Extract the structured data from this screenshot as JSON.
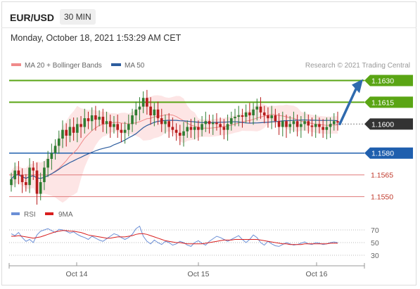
{
  "header": {
    "symbol": "EUR/USD",
    "timeframe": "30 MIN"
  },
  "datetime": "Monday, October 18, 2021 1:53:29 AM CET",
  "attribution": "Research © 2021 Trading Central",
  "colors": {
    "support": "#1f5fae",
    "resistance": "#5aa514",
    "level_line": "#e07a7a",
    "level_text": "#c0392b",
    "ma20": "#f08a8a",
    "bollinger_fill": "#fde0e0",
    "ma50": "#2d5d9e",
    "rsi": "#6b8fd6",
    "rsi_9ma": "#d81e1e",
    "current": "#333333",
    "arrow": "#2f6aae",
    "candle_up": "#2e7d32",
    "candle_down": "#b71c1c"
  },
  "chart_data": [
    {
      "type": "candlestick",
      "title": "EUR/USD",
      "legend": [
        {
          "name": "MA 20 + Bollinger Bands",
          "color": "#f08a8a"
        },
        {
          "name": "MA 50",
          "color": "#2d5d9e"
        }
      ],
      "ylim": [
        1.1545,
        1.1637
      ],
      "x_ticks": [
        "Oct 14",
        "Oct 15",
        "Oct 16"
      ],
      "levels": [
        {
          "label": "1.1630",
          "value": 1.163,
          "kind": "resistance"
        },
        {
          "label": "1.1615",
          "value": 1.1615,
          "kind": "resistance"
        },
        {
          "label": "1.1600",
          "value": 1.16,
          "kind": "current"
        },
        {
          "label": "1.1580",
          "value": 1.158,
          "kind": "support"
        },
        {
          "label": "1.1565",
          "value": 1.1565,
          "kind": "minor"
        },
        {
          "label": "1.1550",
          "value": 1.155,
          "kind": "minor"
        }
      ],
      "forecast_arrow": {
        "from": 1.16,
        "to": 1.163,
        "direction": "up"
      },
      "close": [
        1.1562,
        1.1568,
        1.1565,
        1.156,
        1.1558,
        1.157,
        1.1568,
        1.1552,
        1.156,
        1.157,
        1.1576,
        1.158,
        1.1585,
        1.159,
        1.1596,
        1.1592,
        1.1598,
        1.1594,
        1.16,
        1.1598,
        1.1604,
        1.1602,
        1.1606,
        1.1603,
        1.1605,
        1.16,
        1.1602,
        1.1598,
        1.16,
        1.1596,
        1.1594,
        1.1596,
        1.16,
        1.1606,
        1.161,
        1.1612,
        1.1618,
        1.1612,
        1.1606,
        1.161,
        1.1604,
        1.16,
        1.1602,
        1.1598,
        1.1596,
        1.1594,
        1.1592,
        1.1595,
        1.1598,
        1.1596,
        1.1598,
        1.1596,
        1.16,
        1.1602,
        1.16,
        1.1601,
        1.16,
        1.1598,
        1.1596,
        1.16,
        1.1604,
        1.1605,
        1.1606,
        1.1605,
        1.1608,
        1.1606,
        1.161,
        1.1612,
        1.1608,
        1.1606,
        1.1604,
        1.1606,
        1.1602,
        1.1598,
        1.1602,
        1.1598,
        1.16,
        1.1602,
        1.1598,
        1.16,
        1.1602,
        1.1599,
        1.1598,
        1.16,
        1.1598,
        1.1596,
        1.1598,
        1.16,
        1.1602,
        1.1601
      ]
    },
    {
      "type": "line",
      "title": "RSI",
      "series": [
        {
          "name": "RSI",
          "color": "#6b8fd6",
          "values": [
            64,
            61,
            66,
            58,
            52,
            55,
            50,
            62,
            68,
            70,
            72,
            69,
            66,
            71,
            70,
            68,
            65,
            67,
            63,
            60,
            58,
            55,
            60,
            57,
            54,
            52,
            56,
            60,
            64,
            62,
            58,
            55,
            58,
            63,
            72,
            76,
            60,
            52,
            48,
            54,
            50,
            47,
            52,
            50,
            46,
            48,
            52,
            50,
            46,
            44,
            50,
            53,
            49,
            46,
            52,
            56,
            60,
            58,
            55,
            52,
            55,
            58,
            61,
            55,
            50,
            55,
            62,
            58,
            50,
            46,
            52,
            48,
            45,
            44,
            47,
            50,
            48,
            46,
            47,
            49,
            51,
            48,
            47,
            50,
            49,
            47,
            48,
            50,
            51,
            50
          ]
        },
        {
          "name": "9MA",
          "color": "#d81e1e",
          "values": [
            60,
            60,
            61,
            60,
            59,
            58,
            57,
            58,
            59,
            61,
            63,
            65,
            67,
            68,
            69,
            69,
            68,
            68,
            67,
            66,
            64,
            62,
            61,
            60,
            59,
            58,
            57,
            57,
            58,
            59,
            59,
            59,
            60,
            61,
            63,
            64,
            64,
            63,
            61,
            59,
            57,
            55,
            53,
            52,
            51,
            50,
            50,
            49,
            48,
            48,
            48,
            48,
            48,
            49,
            50,
            51,
            52,
            53,
            54,
            54,
            54,
            55,
            55,
            55,
            55,
            55,
            55,
            55,
            54,
            53,
            52,
            51,
            50,
            49,
            48,
            48,
            47,
            47,
            47,
            47,
            48,
            48,
            48,
            48,
            48,
            48,
            48,
            49,
            49,
            49
          ]
        }
      ],
      "legend": [
        {
          "name": "RSI",
          "color": "#6b8fd6"
        },
        {
          "name": "9MA",
          "color": "#d81e1e"
        }
      ],
      "ylim": [
        20,
        80
      ],
      "y_ticks": [
        "70",
        "50",
        "30"
      ],
      "y_tick_values": [
        70,
        50,
        30
      ]
    }
  ]
}
